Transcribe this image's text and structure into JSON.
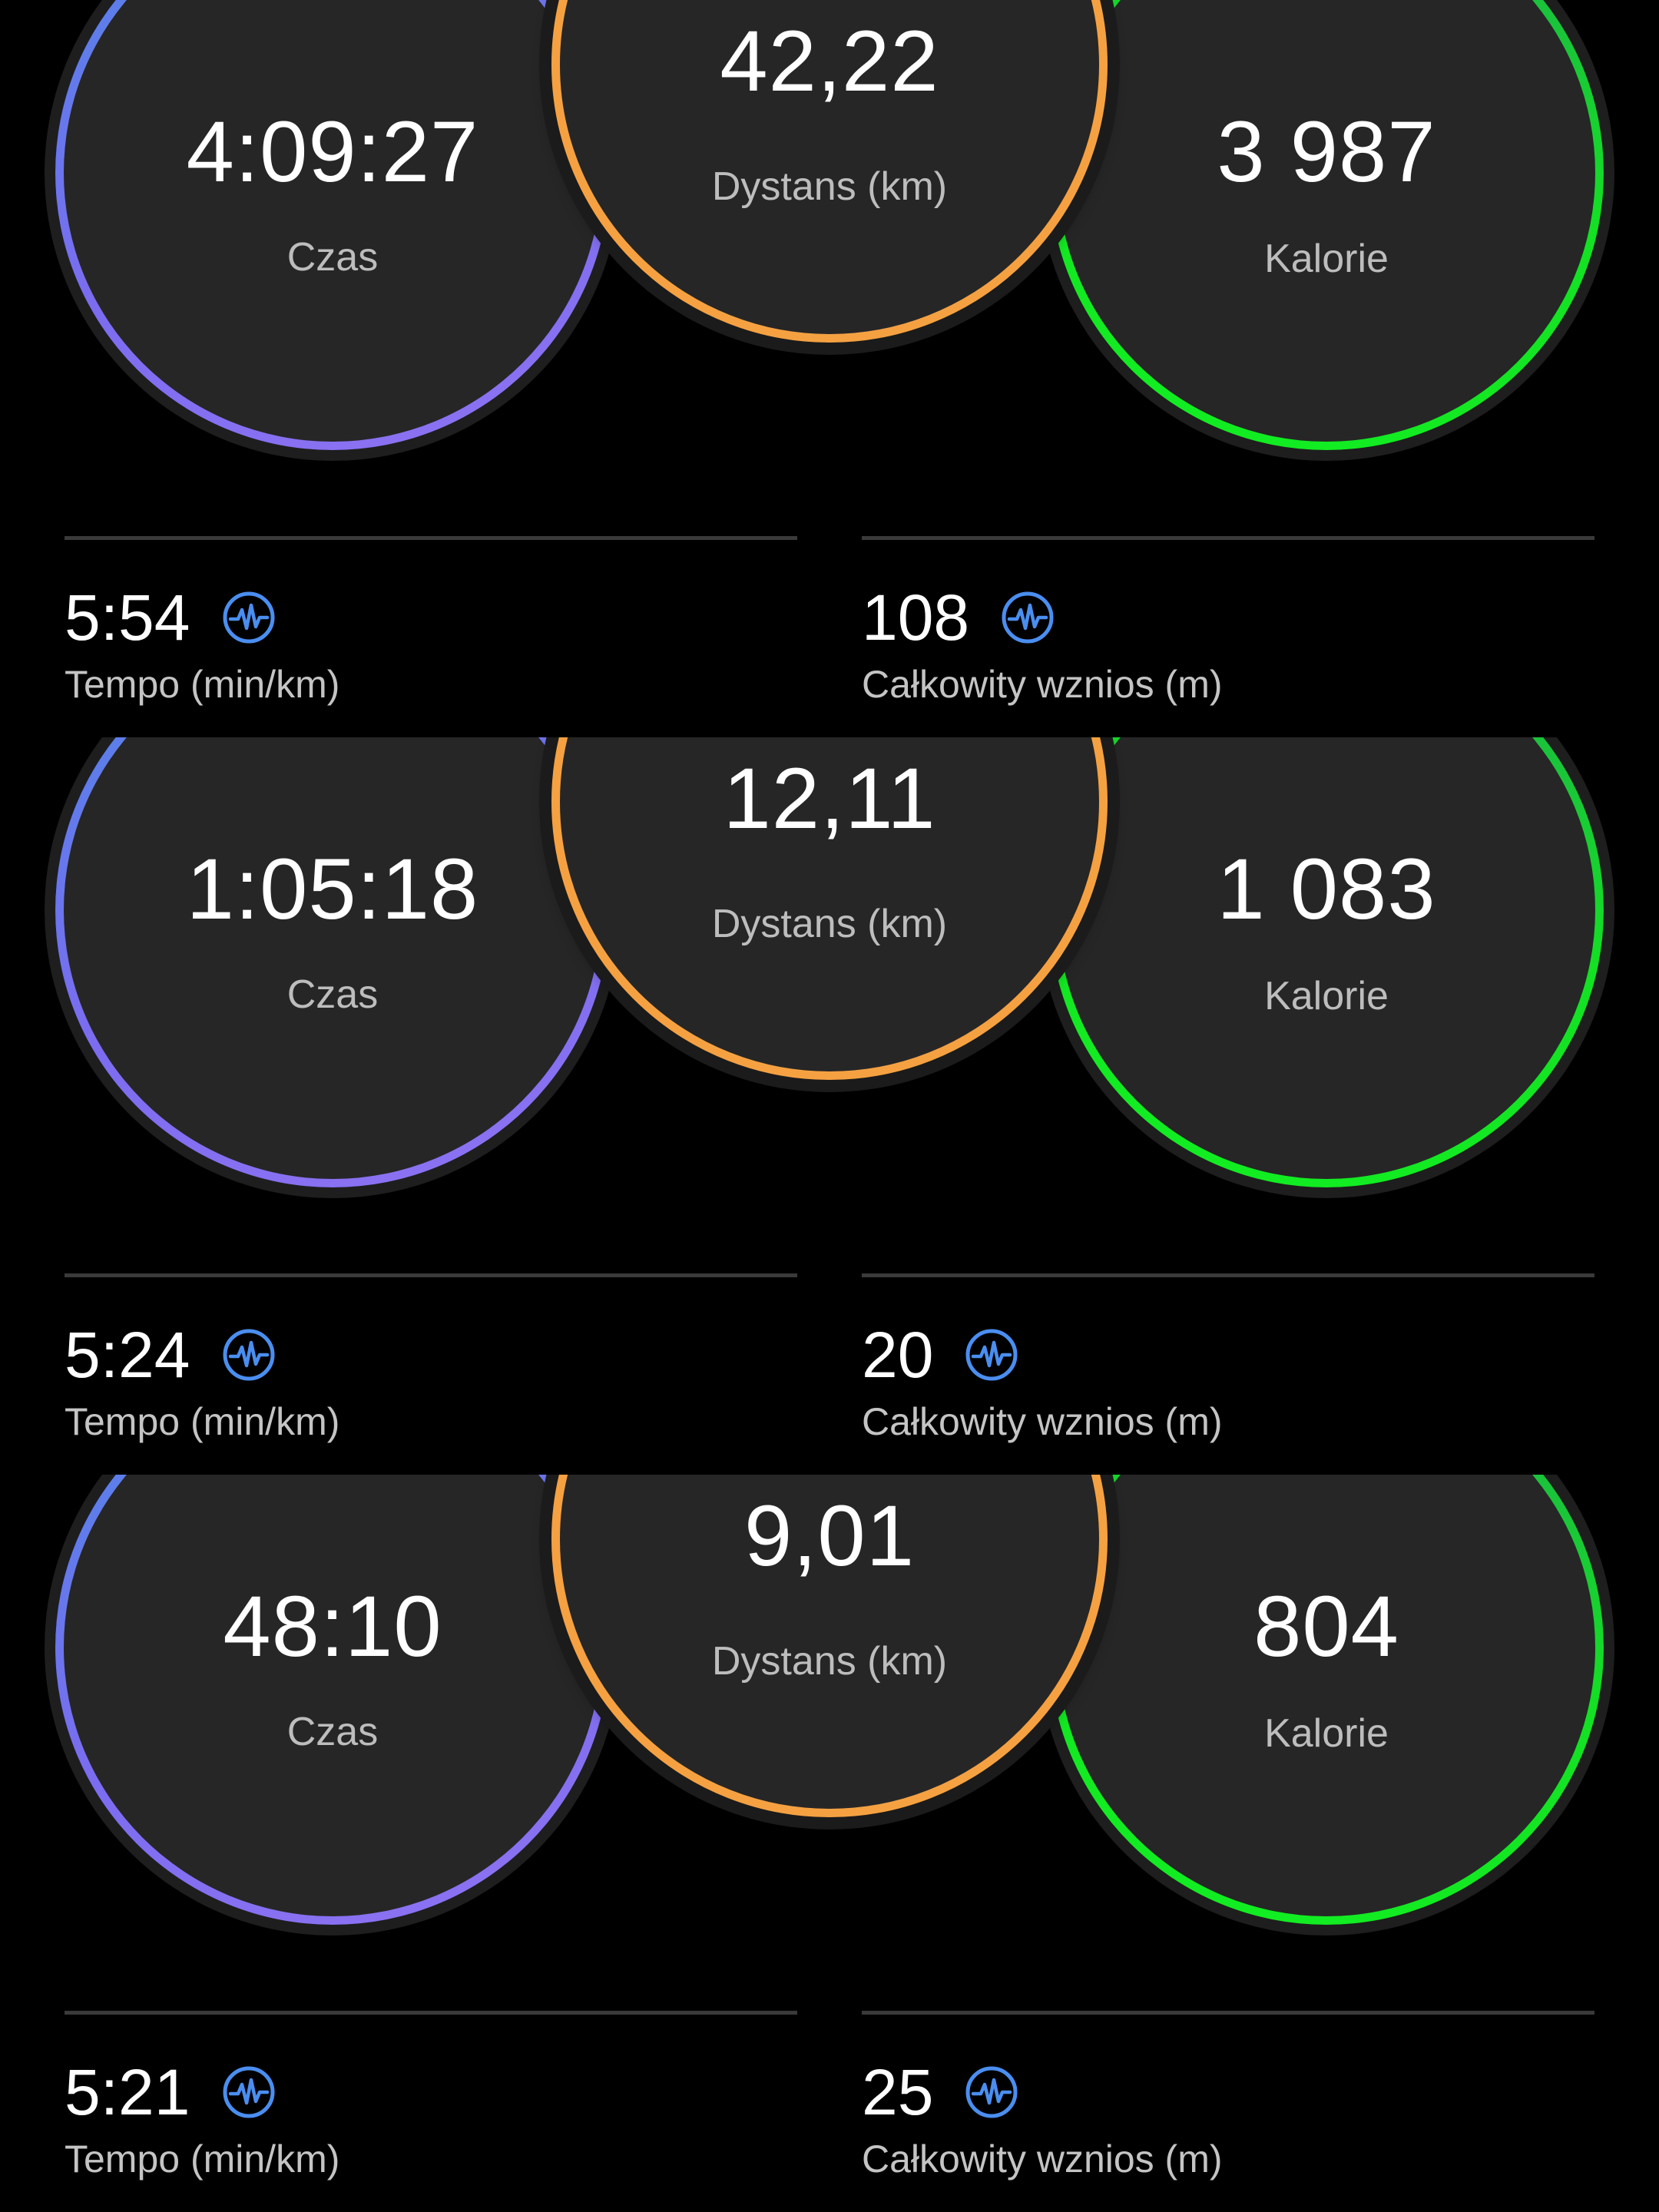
{
  "colors": {
    "time_ring_start": "#4f86e8",
    "time_ring_end": "#8f73f2",
    "distance_ring": "#f5a142",
    "calories_ring": "#14e024",
    "icon_blue": "#4a8ef0",
    "background": "#000000",
    "circle_fill": "#262626"
  },
  "activities": [
    {
      "time": {
        "value": "4:09:27",
        "label": "Czas"
      },
      "distance": {
        "value": "42,22",
        "label": "Dystans (km)"
      },
      "calories": {
        "value": "3 987",
        "label": "Kalorie"
      },
      "pace": {
        "value": "5:54",
        "label": "Tempo (min/km)",
        "icon": "performance-wave-icon"
      },
      "ascent": {
        "value": "108",
        "label": "Całkowity wznios (m)",
        "icon": "performance-wave-icon"
      }
    },
    {
      "time": {
        "value": "1:05:18",
        "label": "Czas"
      },
      "distance": {
        "value": "12,11",
        "label": "Dystans (km)"
      },
      "calories": {
        "value": "1 083",
        "label": "Kalorie"
      },
      "pace": {
        "value": "5:24",
        "label": "Tempo (min/km)",
        "icon": "performance-wave-icon"
      },
      "ascent": {
        "value": "20",
        "label": "Całkowity wznios (m)",
        "icon": "performance-wave-icon"
      }
    },
    {
      "time": {
        "value": "48:10",
        "label": "Czas"
      },
      "distance": {
        "value": "9,01",
        "label": "Dystans (km)"
      },
      "calories": {
        "value": "804",
        "label": "Kalorie"
      },
      "pace": {
        "value": "5:21",
        "label": "Tempo (min/km)",
        "icon": "performance-wave-icon"
      },
      "ascent": {
        "value": "25",
        "label": "Całkowity wznios (m)",
        "icon": "performance-wave-icon"
      }
    }
  ]
}
